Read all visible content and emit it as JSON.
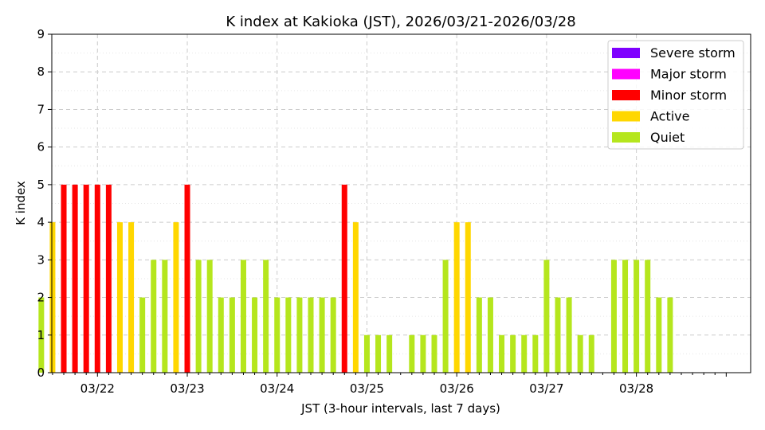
{
  "chart_data": {
    "type": "bar",
    "title": "K index at Kakioka (JST), 2026/03/21-2026/03/28",
    "xlabel": "JST (3-hour intervals, last 7 days)",
    "ylabel": "K index",
    "ylim": [
      0,
      9
    ],
    "yticks": [
      "0",
      "1",
      "2",
      "3",
      "4",
      "5",
      "6",
      "7",
      "8",
      "9"
    ],
    "xticks": [
      "03/22",
      "03/23",
      "03/24",
      "03/25",
      "03/26",
      "03/27",
      "03/28"
    ],
    "grid": "dashed horizontal at major y ticks, dotted at minor; dashed vertical at day boundaries",
    "legend_position": "top-right",
    "legend": [
      {
        "label": "Severe storm",
        "color": "#7f00ff"
      },
      {
        "label": "Major storm",
        "color": "#ff00ff"
      },
      {
        "label": "Minor storm",
        "color": "#ff0000"
      },
      {
        "label": "Active",
        "color": "#ffd700"
      },
      {
        "label": "Quiet",
        "color": "#b5e61d"
      }
    ],
    "bar_interval_hours": 3,
    "bars_per_day": 8,
    "first_bar_slot": 3,
    "values": [
      2,
      4,
      5,
      5,
      5,
      5,
      5,
      4,
      4,
      2,
      3,
      3,
      4,
      5,
      3,
      3,
      2,
      2,
      3,
      2,
      3,
      2,
      2,
      2,
      2,
      2,
      2,
      5,
      4,
      1,
      1,
      1,
      0,
      1,
      1,
      1,
      3,
      4,
      4,
      2,
      2,
      1,
      1,
      1,
      1,
      3,
      2,
      2,
      1,
      1,
      0,
      3,
      3,
      3,
      3,
      2,
      2
    ],
    "colors": [
      "quiet",
      "active",
      "minor",
      "minor",
      "minor",
      "minor",
      "minor",
      "active",
      "active",
      "quiet",
      "quiet",
      "quiet",
      "active",
      "minor",
      "quiet",
      "quiet",
      "quiet",
      "quiet",
      "quiet",
      "quiet",
      "quiet",
      "quiet",
      "quiet",
      "quiet",
      "quiet",
      "quiet",
      "quiet",
      "minor",
      "active",
      "quiet",
      "quiet",
      "quiet",
      "quiet",
      "quiet",
      "quiet",
      "quiet",
      "quiet",
      "active",
      "active",
      "quiet",
      "quiet",
      "quiet",
      "quiet",
      "quiet",
      "quiet",
      "quiet",
      "quiet",
      "quiet",
      "quiet",
      "quiet",
      "quiet",
      "quiet",
      "quiet",
      "quiet",
      "quiet",
      "quiet",
      "quiet"
    ],
    "color_map": {
      "quiet": "#b5e61d",
      "active": "#ffd700",
      "minor": "#ff0000",
      "major": "#ff00ff",
      "severe": "#7f00ff"
    }
  }
}
